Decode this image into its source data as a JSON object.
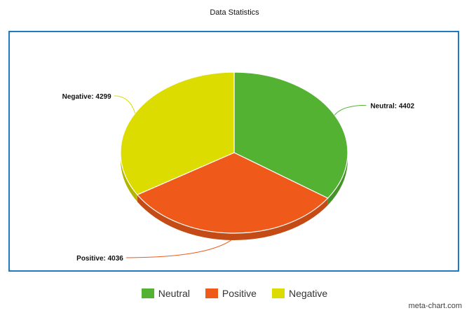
{
  "chart_data": {
    "type": "pie",
    "title": "Data Statistics",
    "categories": [
      "Neutral",
      "Positive",
      "Negative"
    ],
    "values": [
      4402,
      4036,
      4299
    ],
    "labels": [
      "Neutral: 4402",
      "Positive: 4036",
      "Negative: 4299"
    ],
    "colors": [
      "#54b233",
      "#ef5a1b",
      "#dcdc00"
    ],
    "legend_position": "bottom",
    "style": "3d"
  },
  "legend": {
    "items": [
      {
        "label": "Neutral",
        "color": "#54b233"
      },
      {
        "label": "Positive",
        "color": "#ef5a1b"
      },
      {
        "label": "Negative",
        "color": "#dcdc00"
      }
    ]
  },
  "footer": {
    "watermark": "meta-chart.com"
  },
  "theme": {
    "frame_color": "#1f7ac2"
  }
}
